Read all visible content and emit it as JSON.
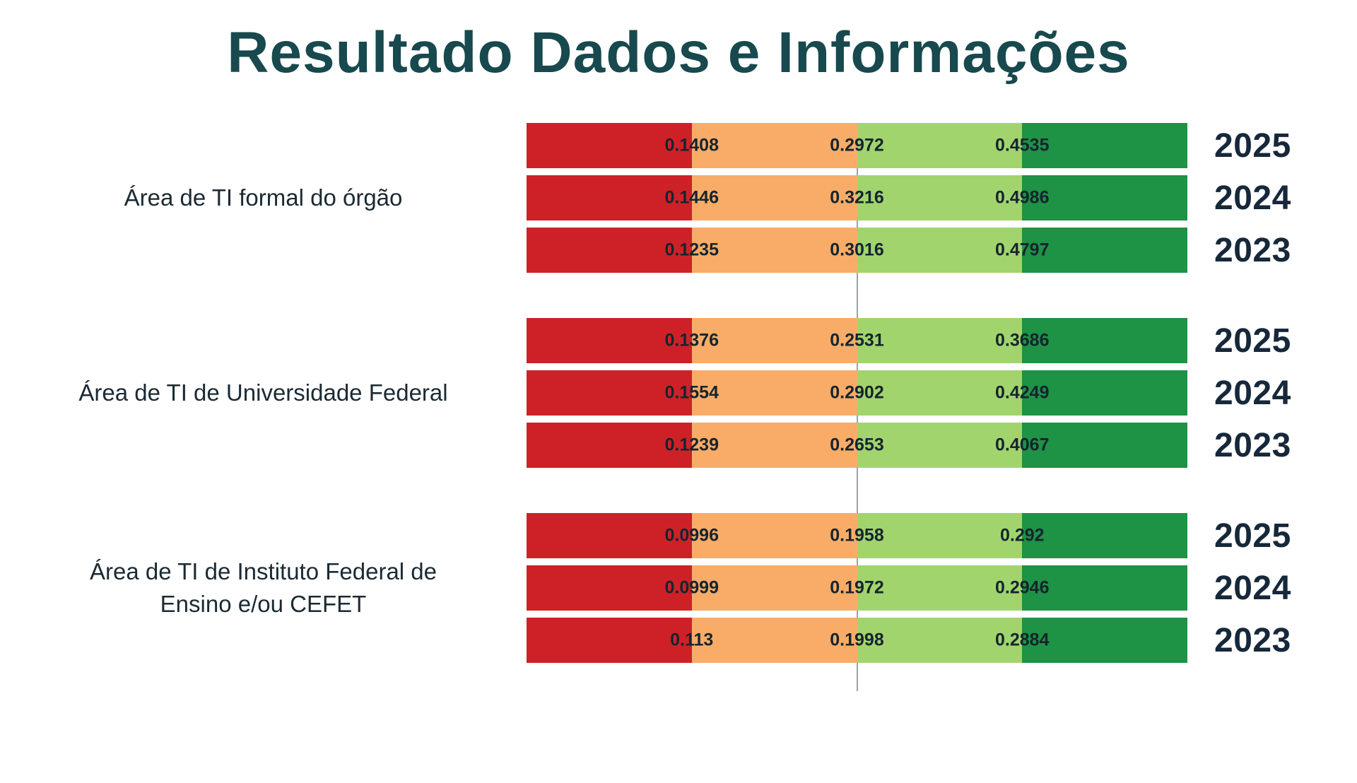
{
  "title": "Resultado Dados e Informações",
  "colors": {
    "title_color": "#17494E",
    "band_red": "#CE2127",
    "band_orange": "#F9AC67",
    "band_light_green": "#A2D46E",
    "band_dark_green": "#1E9245",
    "value_text": "#15242E",
    "year_text": "#16283A",
    "label_text": "#1B2A33",
    "divider_color": "#9AA3A3"
  },
  "chart_data": {
    "type": "bar",
    "subtype": "horizontal-quartile-band-bars",
    "title": "Resultado Dados e Informações",
    "legend": "none",
    "band_colors_order": [
      "red",
      "orange",
      "light-green",
      "dark-green"
    ],
    "band_widths_pct": [
      25,
      25,
      25,
      25
    ],
    "value_positions_pct": [
      25,
      50,
      75
    ],
    "groups": [
      {
        "label": "Área de TI formal do órgão",
        "rows": [
          {
            "year": "2025",
            "values": [
              0.1408,
              0.2972,
              0.4535
            ]
          },
          {
            "year": "2024",
            "values": [
              0.1446,
              0.3216,
              0.4986
            ]
          },
          {
            "year": "2023",
            "values": [
              0.1235,
              0.3016,
              0.4797
            ]
          }
        ]
      },
      {
        "label": "Área de TI de Universidade Federal",
        "rows": [
          {
            "year": "2025",
            "values": [
              0.1376,
              0.2531,
              0.3686
            ]
          },
          {
            "year": "2024",
            "values": [
              0.1554,
              0.2902,
              0.4249
            ]
          },
          {
            "year": "2023",
            "values": [
              0.1239,
              0.2653,
              0.4067
            ]
          }
        ]
      },
      {
        "label": "Área de TI de Instituto Federal de Ensino e/ou CEFET",
        "rows": [
          {
            "year": "2025",
            "values": [
              0.0996,
              0.1958,
              0.292
            ]
          },
          {
            "year": "2024",
            "values": [
              0.0999,
              0.1972,
              0.2946
            ]
          },
          {
            "year": "2023",
            "values": [
              0.113,
              0.1998,
              0.2884
            ]
          }
        ]
      }
    ]
  }
}
